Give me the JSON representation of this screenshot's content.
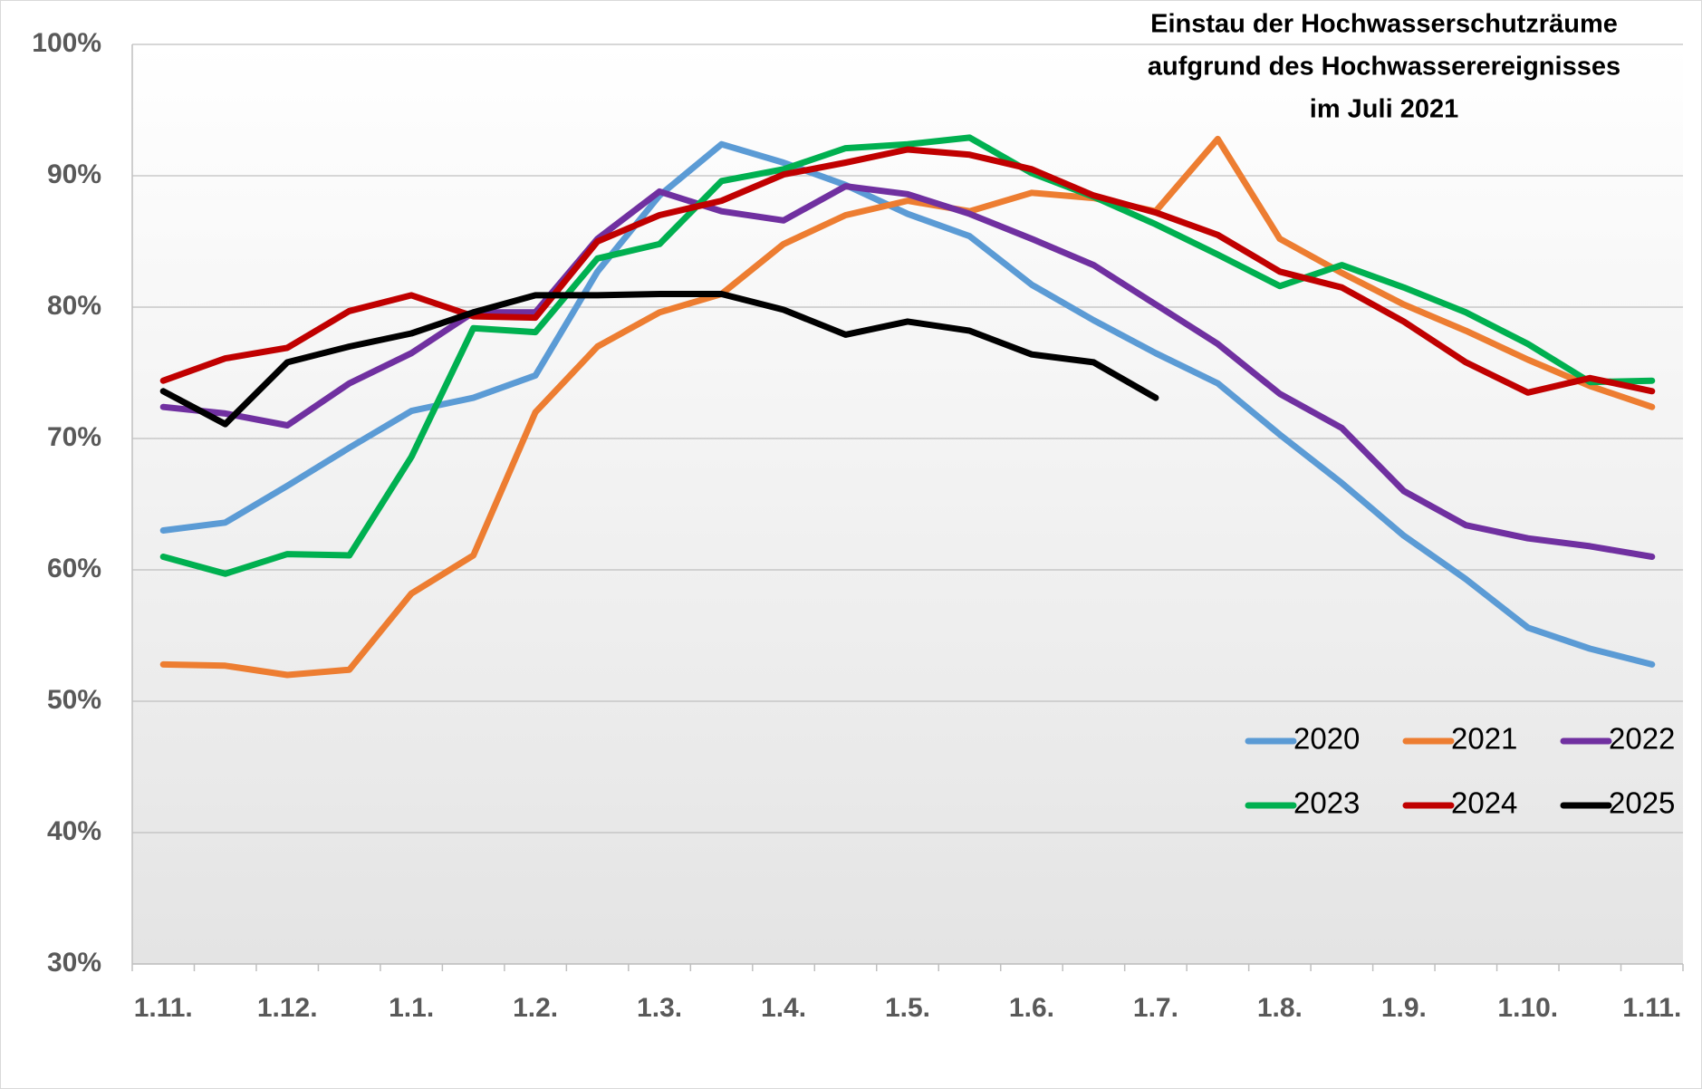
{
  "chart_data": {
    "type": "line",
    "title": [
      "Einstau der Hochwasserschutzräume",
      "aufgrund des Hochwasserereignisses",
      "im Juli 2021"
    ],
    "categories": [
      "1.11.",
      null,
      "1.12.",
      null,
      "1.1.",
      null,
      "1.2.",
      null,
      "1.3.",
      null,
      "1.4.",
      null,
      "1.5.",
      null,
      "1.6.",
      null,
      "1.7.",
      null,
      "1.8.",
      null,
      "1.9.",
      null,
      "1.10.",
      null,
      "1.11."
    ],
    "ylim": [
      30,
      100
    ],
    "yticks": [
      {
        "value": 30,
        "label": "30%"
      },
      {
        "value": 40,
        "label": "40%"
      },
      {
        "value": 50,
        "label": "50%"
      },
      {
        "value": 60,
        "label": "60%"
      },
      {
        "value": 70,
        "label": "70%"
      },
      {
        "value": 80,
        "label": "80%"
      },
      {
        "value": 90,
        "label": "90%"
      },
      {
        "value": 100,
        "label": "100%"
      }
    ],
    "grid": true,
    "series": [
      {
        "name": "2020",
        "color": "#5b9bd5",
        "values": [
          63.0,
          63.6,
          66.4,
          69.3,
          72.1,
          73.1,
          74.8,
          82.7,
          88.5,
          92.4,
          91.0,
          89.3,
          87.1,
          85.4,
          81.7,
          79.0,
          76.5,
          74.2,
          70.3,
          66.6,
          62.6,
          59.3,
          55.6,
          54.0,
          52.8
        ]
      },
      {
        "name": "2021",
        "color": "#ed7d31",
        "values": [
          52.8,
          52.7,
          52.0,
          52.4,
          58.2,
          61.1,
          72.0,
          77.0,
          79.6,
          81.0,
          84.8,
          87.0,
          88.1,
          87.3,
          88.7,
          88.3,
          87.3,
          92.8,
          85.2,
          82.6,
          80.2,
          78.2,
          76.0,
          74.0,
          72.4
        ]
      },
      {
        "name": "2022",
        "color": "#7030a0",
        "values": [
          72.4,
          71.9,
          71.0,
          74.2,
          76.5,
          79.6,
          79.6,
          85.2,
          88.8,
          87.3,
          86.6,
          89.2,
          88.6,
          87.1,
          85.2,
          83.2,
          80.2,
          77.2,
          73.4,
          70.8,
          66.0,
          63.4,
          62.4,
          61.8,
          61.0
        ]
      },
      {
        "name": "2023",
        "color": "#00b050",
        "values": [
          61.0,
          59.7,
          61.2,
          61.1,
          68.6,
          78.4,
          78.1,
          83.7,
          84.8,
          89.6,
          90.5,
          92.1,
          92.4,
          92.9,
          90.2,
          88.4,
          86.3,
          84.0,
          81.6,
          83.2,
          81.5,
          79.6,
          77.2,
          74.3,
          74.4
        ]
      },
      {
        "name": "2024",
        "color": "#c00000",
        "values": [
          74.4,
          76.1,
          76.9,
          79.7,
          80.9,
          79.3,
          79.2,
          85.0,
          87.0,
          88.1,
          90.1,
          91.0,
          92.0,
          91.6,
          90.5,
          88.5,
          87.2,
          85.5,
          82.7,
          81.5,
          78.9,
          75.8,
          73.5,
          74.6,
          73.6
        ]
      },
      {
        "name": "2025",
        "color": "#000000",
        "values": [
          73.6,
          71.1,
          75.8,
          77.0,
          78.0,
          79.6,
          80.9,
          80.9,
          81.0,
          81.0,
          79.8,
          77.9,
          78.9,
          78.2,
          76.4,
          75.8,
          73.1,
          null,
          null,
          null,
          null,
          null,
          null,
          null,
          null
        ]
      }
    ]
  }
}
